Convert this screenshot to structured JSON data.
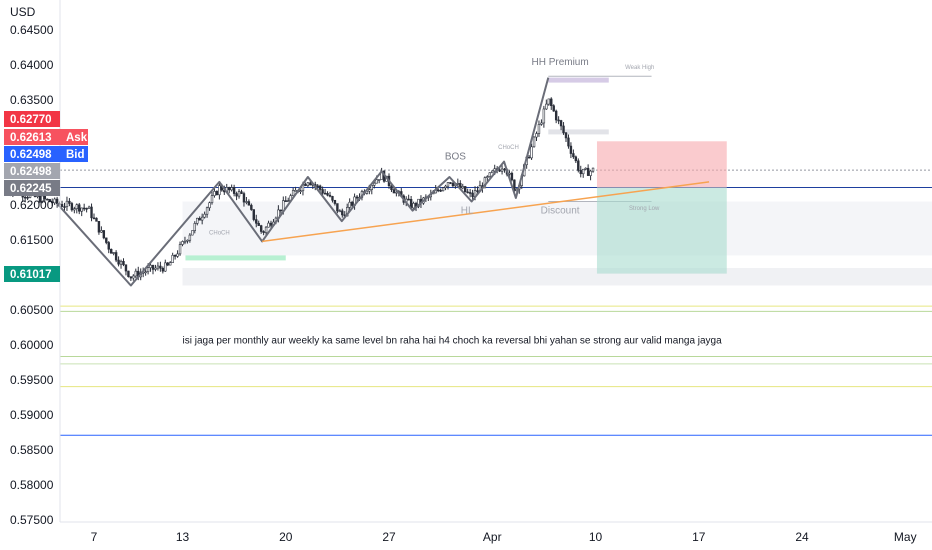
{
  "chart_data": {
    "type": "candlestick",
    "currency_label": "USD",
    "y_ticks": [
      "0.64500",
      "0.64000",
      "0.63500",
      "0.63000",
      "0.62500",
      "0.62000",
      "0.61500",
      "0.61000",
      "0.60500",
      "0.60000",
      "0.59500",
      "0.59000",
      "0.58500",
      "0.58000",
      "0.57500"
    ],
    "ylim": [
      0.575,
      0.6466
    ],
    "x_ticks": [
      {
        "label": "7",
        "day": 7
      },
      {
        "label": "13",
        "day": 13
      },
      {
        "label": "20",
        "day": 20
      },
      {
        "label": "27",
        "day": 27
      },
      {
        "label": "Apr",
        "day": 34
      },
      {
        "label": "10",
        "day": 41
      },
      {
        "label": "17",
        "day": 48
      },
      {
        "label": "24",
        "day": 55
      },
      {
        "label": "May",
        "day": 62
      }
    ],
    "price_tags": [
      {
        "value": "0.62770",
        "label": "",
        "color": "#f23645",
        "price": 0.6277
      },
      {
        "value": "0.62613",
        "label": "Ask",
        "color": "#f7525f",
        "price": 0.62613
      },
      {
        "value": "0.62498",
        "label": "Bid",
        "color": "#2962ff",
        "price": 0.62498
      },
      {
        "value": "0.62498",
        "label": "",
        "color": "#a3a6af",
        "price": 0.62498
      },
      {
        "value": "0.62245",
        "label": "",
        "color": "#787b86",
        "price": 0.62245
      },
      {
        "value": "0.61017",
        "label": "",
        "color": "#089981",
        "price": 0.61017
      }
    ],
    "horizontal_lines": [
      {
        "price": 0.6225,
        "color": "#1e3f9e"
      },
      {
        "price": 0.60555,
        "color": "#e6e680"
      },
      {
        "price": 0.6048,
        "color": "#b8d89a"
      },
      {
        "price": 0.59835,
        "color": "#b8d89a"
      },
      {
        "price": 0.5973,
        "color": "#c9e2b5"
      },
      {
        "price": 0.59405,
        "color": "#e6e680"
      },
      {
        "price": 0.5871,
        "color": "#2962ff"
      }
    ],
    "swing_line": [
      {
        "day": 4.5,
        "price": 0.6202
      },
      {
        "day": 9.5,
        "price": 0.6085
      },
      {
        "day": 15.5,
        "price": 0.6233
      },
      {
        "day": 18.4,
        "price": 0.6148
      },
      {
        "day": 21.5,
        "price": 0.624
      },
      {
        "day": 23.8,
        "price": 0.6177
      },
      {
        "day": 26.5,
        "price": 0.6248
      },
      {
        "day": 28.6,
        "price": 0.6192
      },
      {
        "day": 31.1,
        "price": 0.624
      },
      {
        "day": 32.6,
        "price": 0.6205
      },
      {
        "day": 34.8,
        "price": 0.6262
      },
      {
        "day": 35.6,
        "price": 0.621
      },
      {
        "day": 37.8,
        "price": 0.6382
      }
    ],
    "trendline": {
      "from": {
        "day": 18.4,
        "price": 0.6148
      },
      "to": {
        "day": 48.7,
        "price": 0.6233
      },
      "color": "#f7a350"
    },
    "labels": [
      {
        "text": "HH Premium",
        "day": 38.6,
        "price": 0.64,
        "color": "#787b86",
        "size": 10
      },
      {
        "text": "Weak High",
        "day": 44,
        "price": 0.6394,
        "color": "#a3a6af",
        "size": 6
      },
      {
        "text": "BOS",
        "day": 31.5,
        "price": 0.6265,
        "color": "#787b86",
        "size": 10
      },
      {
        "text": "CHoCH",
        "day": 35.1,
        "price": 0.628,
        "color": "#a3a6af",
        "size": 6
      },
      {
        "text": "CHoCH",
        "day": 15.5,
        "price": 0.6158,
        "color": "#a3a6af",
        "size": 6
      },
      {
        "text": "HL",
        "day": 32.3,
        "price": 0.6188,
        "color": "#a3a6af",
        "size": 10
      },
      {
        "text": "Discount",
        "day": 38.6,
        "price": 0.6188,
        "color": "#a3a6af",
        "size": 10
      },
      {
        "text": "Strong Low",
        "day": 44.3,
        "price": 0.6193,
        "color": "#a3a6af",
        "size": 6
      }
    ],
    "annotation": "isi jaga per monthly aur weekly ka same level bn raha hai h4 choch ka reversal bhi yahan se strong aur valid manga jayga",
    "stop_zone": {
      "day_from": 41.1,
      "day_to": 49.9,
      "price_top": 0.6291,
      "price_bottom": 0.6225,
      "color": "#f7a9ad"
    },
    "target_zone": {
      "day_from": 41.1,
      "day_to": 49.9,
      "price_top": 0.6225,
      "price_bottom": 0.6102,
      "color": "#a8dccf"
    },
    "candles": {
      "path_points": [
        {
          "day": 1.0,
          "price": 0.6224
        },
        {
          "day": 4.5,
          "price": 0.6202
        },
        {
          "day": 6.6,
          "price": 0.6195
        },
        {
          "day": 8.0,
          "price": 0.614
        },
        {
          "day": 9.5,
          "price": 0.6098
        },
        {
          "day": 10.8,
          "price": 0.6108
        },
        {
          "day": 12.0,
          "price": 0.6112
        },
        {
          "day": 13.5,
          "price": 0.616
        },
        {
          "day": 15.5,
          "price": 0.6225
        },
        {
          "day": 17.0,
          "price": 0.6215
        },
        {
          "day": 18.4,
          "price": 0.616
        },
        {
          "day": 20.0,
          "price": 0.6205
        },
        {
          "day": 21.5,
          "price": 0.6236
        },
        {
          "day": 22.8,
          "price": 0.6215
        },
        {
          "day": 23.8,
          "price": 0.6185
        },
        {
          "day": 25.0,
          "price": 0.6215
        },
        {
          "day": 26.5,
          "price": 0.6244
        },
        {
          "day": 27.6,
          "price": 0.6215
        },
        {
          "day": 28.6,
          "price": 0.6198
        },
        {
          "day": 30.0,
          "price": 0.6215
        },
        {
          "day": 31.1,
          "price": 0.6236
        },
        {
          "day": 32.6,
          "price": 0.6212
        },
        {
          "day": 34.0,
          "price": 0.6245
        },
        {
          "day": 34.8,
          "price": 0.6258
        },
        {
          "day": 35.6,
          "price": 0.622
        },
        {
          "day": 36.8,
          "price": 0.629
        },
        {
          "day": 37.8,
          "price": 0.635
        },
        {
          "day": 38.9,
          "price": 0.63
        },
        {
          "day": 40.0,
          "price": 0.6245
        },
        {
          "day": 40.9,
          "price": 0.625
        }
      ],
      "up_color": "#2a2e39",
      "down_color": "#2a2e39"
    }
  }
}
